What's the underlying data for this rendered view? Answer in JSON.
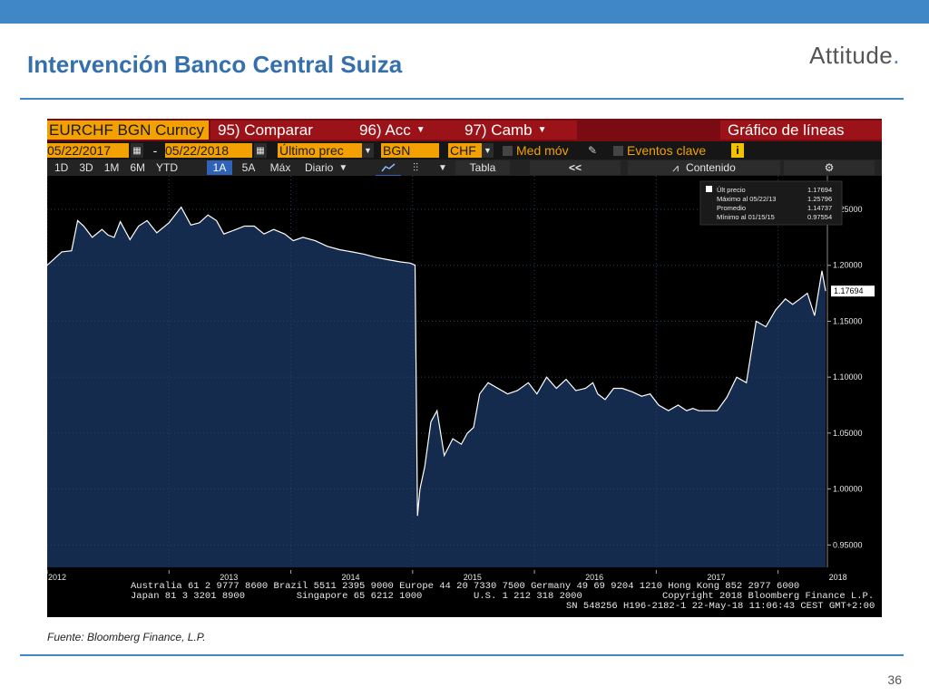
{
  "slide": {
    "title": "Intervención Banco Central Suiza",
    "brand": "Attitude",
    "brand_dot": ".",
    "source": "Fuente: Bloomberg Finance, L.P.",
    "page_number": "36"
  },
  "terminal": {
    "ticker": "EURCHF BGN Curncy",
    "compare": "95) Comparar",
    "actions": "96) Acc",
    "change": "97) Camb",
    "chart_type": "Gráfico de líneas",
    "date_from": "05/22/2017",
    "date_sep": "-",
    "date_to": "05/22/2018",
    "price_field": "Último prec",
    "source_code": "BGN",
    "currency": "CHF",
    "moving_avg": "Med móv",
    "key_events": "Eventos clave",
    "info_icon": "i",
    "ranges": [
      "1D",
      "3D",
      "1M",
      "6M",
      "YTD",
      "1A",
      "5A",
      "Máx"
    ],
    "selected_range": "1A",
    "frequency": "Diario",
    "table": "Tabla",
    "back": "<<",
    "content": "Contenido",
    "footer_line1": "Australia 61 2 9777 8600 Brazil 5511 2395 9000 Europe 44 20 7330 7500 Germany 49 69 9204 1210 Hong Kong 852 2977 6000",
    "footer_line2": "Japan 81 3 3201 8900         Singapore 65 6212 1000         U.S. 1 212 318 2000              Copyright 2018 Bloomberg Finance L.P.",
    "footer_line3": "SN 548256 H196-2182-1 22-May-18 11:06:43 CEST GMT+2:00"
  },
  "legend": {
    "last": "Últ precio",
    "last_value": "1.17694",
    "max": "Máximo al 05/22/13",
    "max_value": "1.25796",
    "avg": "Promedio",
    "avg_value": "1.14737",
    "min": "Mínimo al 01/15/15",
    "min_value": "0.97554"
  },
  "colors": {
    "fill": "#142b4e",
    "line": "#ffffff",
    "background": "#000000",
    "slide_accent": "#3f87c7"
  },
  "chart_data": {
    "type": "area",
    "x_ticks": [
      "2012",
      "2013",
      "2014",
      "2015",
      "2016",
      "2017",
      "2018"
    ],
    "y_ticks": [
      "0.95000",
      "1.00000",
      "1.05000",
      "1.10000",
      "1.15000",
      "1.20000",
      "1.25000"
    ],
    "ylim": [
      0.93,
      1.28
    ],
    "xlim": [
      2012.0,
      2018.39
    ],
    "last_value_label": "1.17694",
    "x": [
      2012.0,
      2012.05,
      2012.12,
      2012.2,
      2012.25,
      2012.3,
      2012.37,
      2012.45,
      2012.5,
      2012.55,
      2012.6,
      2012.68,
      2012.75,
      2012.82,
      2012.9,
      2013.0,
      2013.05,
      2013.1,
      2013.18,
      2013.25,
      2013.32,
      2013.39,
      2013.45,
      2013.55,
      2013.62,
      2013.7,
      2013.78,
      2013.86,
      2013.95,
      2014.02,
      2014.1,
      2014.2,
      2014.3,
      2014.4,
      2014.5,
      2014.6,
      2014.7,
      2014.8,
      2014.9,
      2014.98,
      2015.02,
      2015.04,
      2015.06,
      2015.1,
      2015.15,
      2015.2,
      2015.26,
      2015.33,
      2015.4,
      2015.45,
      2015.5,
      2015.55,
      2015.62,
      2015.7,
      2015.78,
      2015.86,
      2015.95,
      2016.02,
      2016.1,
      2016.18,
      2016.26,
      2016.34,
      2016.42,
      2016.48,
      2016.52,
      2016.58,
      2016.65,
      2016.72,
      2016.8,
      2016.88,
      2016.95,
      2017.02,
      2017.1,
      2017.18,
      2017.25,
      2017.3,
      2017.35,
      2017.42,
      2017.5,
      2017.58,
      2017.66,
      2017.74,
      2017.82,
      2017.9,
      2017.98,
      2018.06,
      2018.12,
      2018.18,
      2018.24,
      2018.3,
      2018.36,
      2018.39
    ],
    "values": [
      1.2,
      1.205,
      1.212,
      1.213,
      1.24,
      1.235,
      1.225,
      1.232,
      1.227,
      1.225,
      1.239,
      1.223,
      1.235,
      1.24,
      1.229,
      1.238,
      1.245,
      1.252,
      1.236,
      1.238,
      1.245,
      1.24,
      1.228,
      1.232,
      1.235,
      1.235,
      1.228,
      1.232,
      1.228,
      1.222,
      1.225,
      1.222,
      1.217,
      1.214,
      1.212,
      1.21,
      1.207,
      1.205,
      1.203,
      1.202,
      1.2,
      0.976,
      1.0,
      1.02,
      1.06,
      1.07,
      1.03,
      1.045,
      1.04,
      1.05,
      1.055,
      1.085,
      1.095,
      1.09,
      1.085,
      1.088,
      1.095,
      1.085,
      1.1,
      1.09,
      1.098,
      1.088,
      1.09,
      1.095,
      1.085,
      1.08,
      1.09,
      1.09,
      1.087,
      1.083,
      1.085,
      1.075,
      1.07,
      1.075,
      1.07,
      1.072,
      1.07,
      1.07,
      1.07,
      1.082,
      1.1,
      1.095,
      1.15,
      1.145,
      1.16,
      1.17,
      1.165,
      1.17,
      1.175,
      1.155,
      1.195,
      1.177
    ]
  }
}
